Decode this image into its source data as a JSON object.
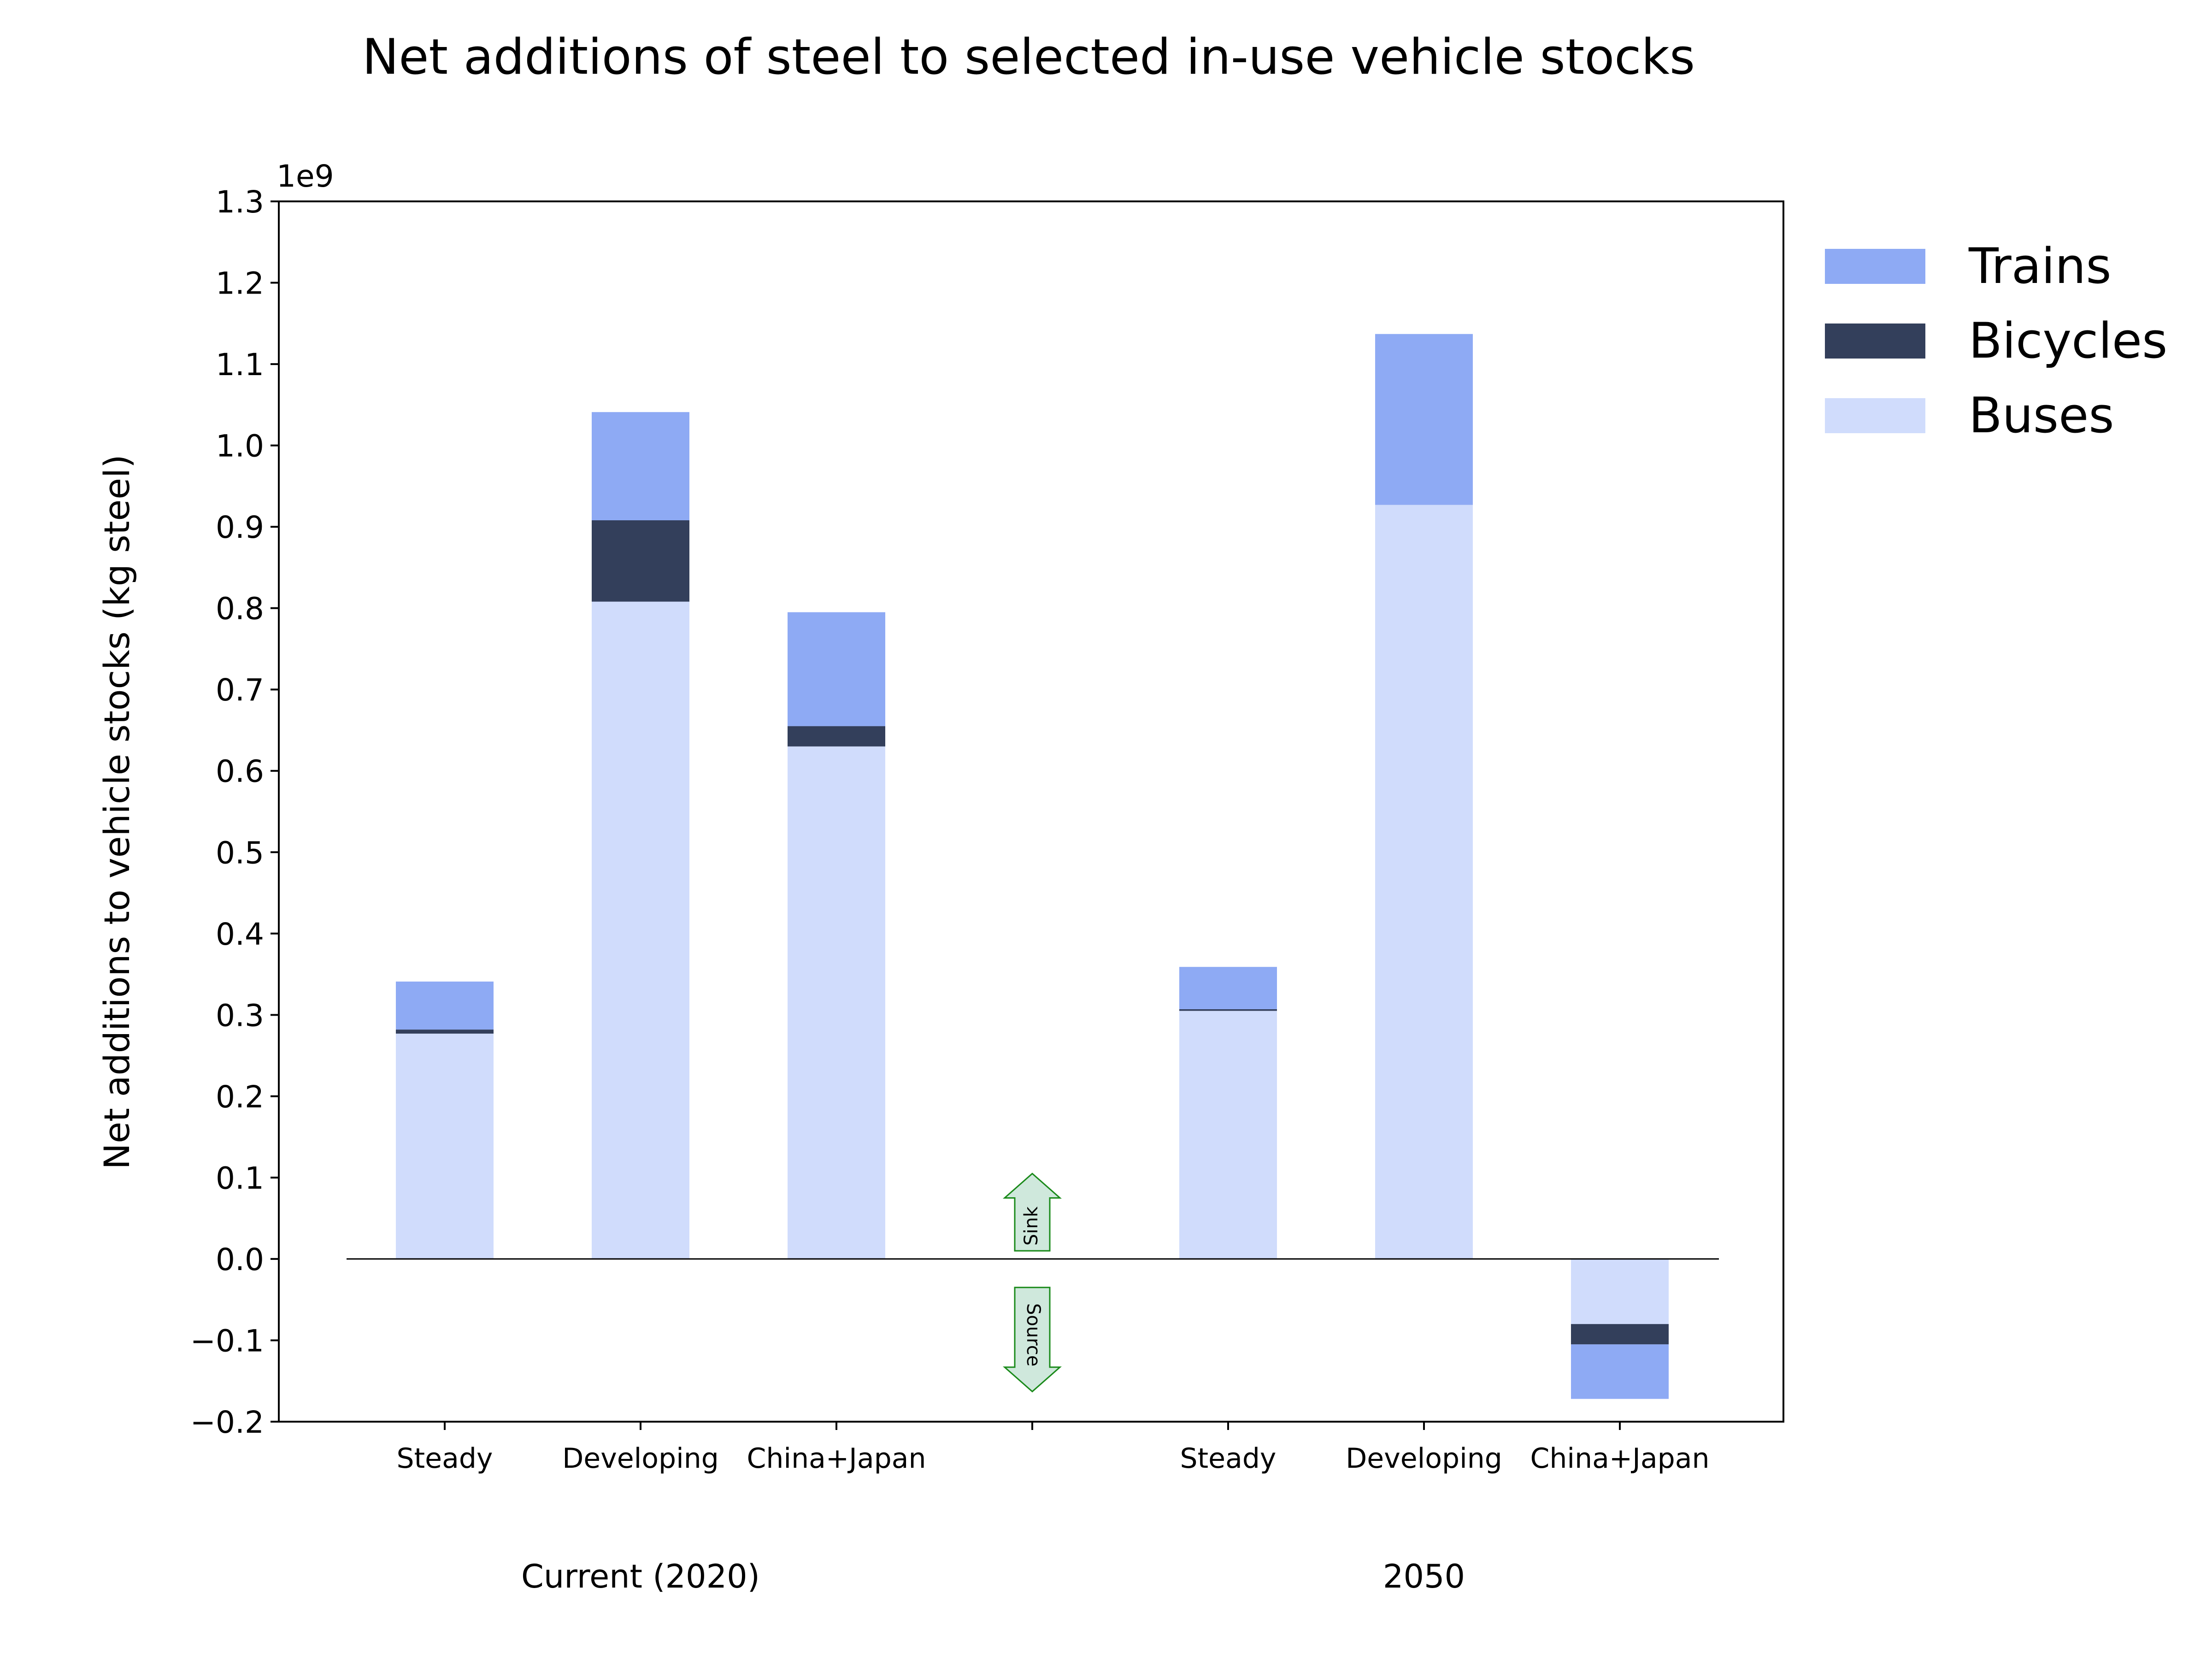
{
  "chart_data": {
    "type": "bar",
    "stacked": true,
    "title": "Net additions of steel to selected in-use vehicle stocks",
    "ylabel": "Net additions to vehicle stocks (kg steel)",
    "y_offset_label": "1e9",
    "ylim": [
      -0.2,
      1.3
    ],
    "yticks": [
      "−0.2",
      "−0.1",
      "0.0",
      "0.1",
      "0.2",
      "0.3",
      "0.4",
      "0.5",
      "0.6",
      "0.7",
      "0.8",
      "0.9",
      "1.0",
      "1.1",
      "1.2",
      "1.3"
    ],
    "categories": [
      "Steady",
      "Developing",
      "China+Japan",
      "",
      "Steady",
      "Developing",
      "China+Japan"
    ],
    "groups": [
      {
        "label": "Current (2020)",
        "categories": [
          "Steady",
          "Developing",
          "China+Japan"
        ]
      },
      {
        "label": "2050",
        "categories": [
          "Steady",
          "Developing",
          "China+Japan"
        ]
      }
    ],
    "series": [
      {
        "name": "Buses",
        "color": "#d0dcfc",
        "values": [
          0.277,
          0.808,
          0.63,
          null,
          0.305,
          0.985,
          -0.08
        ]
      },
      {
        "name": "Bicycles",
        "color": "#333f5b",
        "values": [
          0.005,
          0.1,
          0.025,
          null,
          0.002,
          -0.058,
          -0.025
        ]
      },
      {
        "name": "Trains",
        "color": "#8eaaf4",
        "values": [
          0.059,
          0.133,
          0.14,
          null,
          0.052,
          0.21,
          -0.067
        ]
      }
    ],
    "legend": {
      "position": "right",
      "order": [
        "Trains",
        "Bicycles",
        "Buses"
      ]
    },
    "annotations": [
      {
        "text": "Sink",
        "direction": "up",
        "color": "#1a8a1a"
      },
      {
        "text": "Source",
        "direction": "down",
        "color": "#1a8a1a"
      }
    ],
    "grid": false
  }
}
